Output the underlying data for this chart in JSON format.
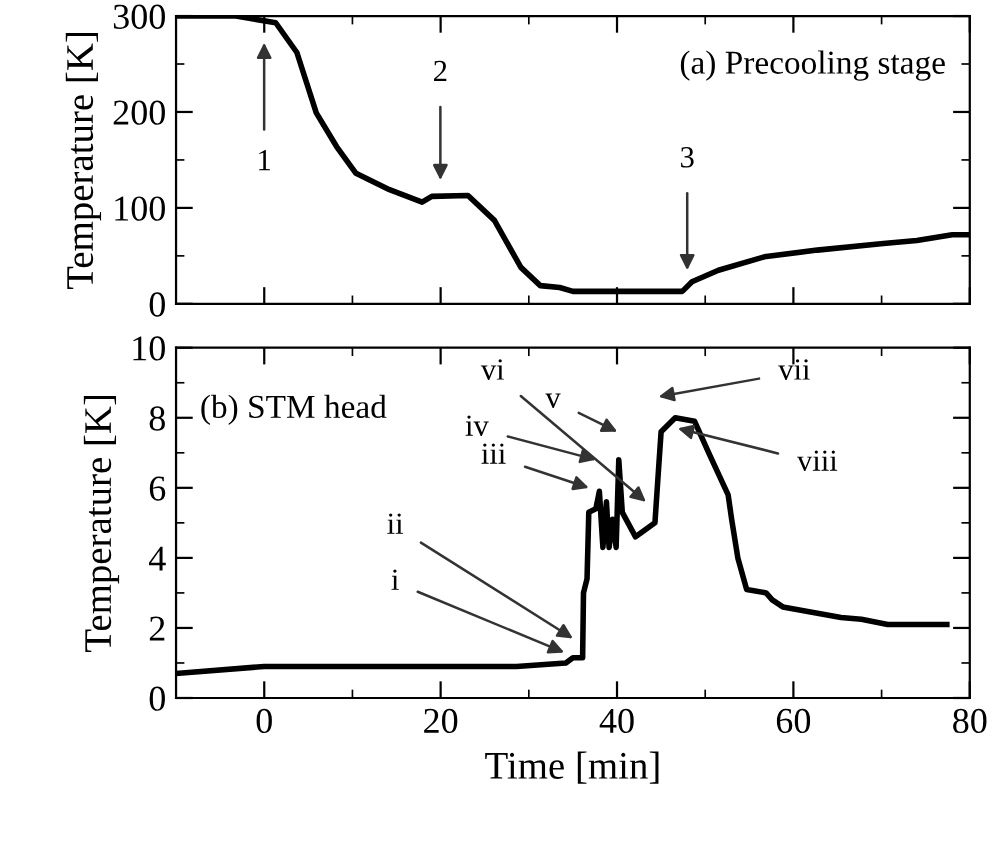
{
  "chart_data": [
    {
      "type": "line",
      "title": "(a) Precooling stage",
      "ylabel": "Temperature [K]",
      "xlim": [
        -10,
        80
      ],
      "ylim": [
        0,
        300
      ],
      "xticks": [
        0,
        20,
        40,
        60,
        80
      ],
      "yticks": [
        0,
        100,
        200,
        300
      ],
      "tick_labels": "y",
      "grid": false,
      "legend": false,
      "marker": "none",
      "line_style": "solid",
      "series": [
        {
          "color": "#000000",
          "x": [
            -10,
            -3.2,
            1.3,
            3.7,
            5.9,
            8.2,
            10.4,
            14.2,
            17.9,
            19.0,
            23.1,
            26.1,
            29.1,
            31.3,
            33.5,
            35.0,
            47.4,
            48.5,
            51.5,
            56.7,
            62.7,
            70.2,
            74,
            78,
            80
          ],
          "values": [
            300,
            300,
            293,
            262,
            199,
            164,
            136,
            119,
            106,
            112,
            113,
            87,
            38,
            19,
            17,
            13,
            13,
            23,
            35,
            49,
            56,
            63,
            66,
            72,
            72
          ]
        }
      ],
      "annotations": [
        "1",
        "2",
        "3"
      ]
    },
    {
      "type": "line",
      "title": "(b) STM head",
      "xlabel": "Time [min]",
      "ylabel": "Temperature [K]",
      "xlim": [
        -10,
        80
      ],
      "ylim": [
        0,
        10
      ],
      "xticks": [
        0,
        20,
        40,
        60,
        80
      ],
      "yticks": [
        0,
        2,
        4,
        6,
        8,
        10
      ],
      "grid": false,
      "legend": false,
      "marker": "none",
      "line_style": "solid",
      "series": [
        {
          "color": "#000000",
          "x": [
            -10,
            0,
            28.6,
            34.2,
            35.0,
            36.1,
            36.2,
            36.6,
            36.8,
            37.6,
            38.0,
            38.4,
            38.8,
            39.1,
            39.5,
            39.9,
            40.2,
            40.6,
            42.1,
            44.3,
            44.7,
            45.0,
            46.6,
            48.8,
            50.4,
            52.6,
            53.0,
            53.7,
            54.7,
            56.9,
            57.6,
            58.8,
            65.4,
            67.7,
            70.7,
            77.4
          ],
          "values": [
            0.7,
            0.9,
            0.9,
            1.0,
            1.15,
            1.15,
            3.0,
            3.4,
            5.3,
            5.4,
            5.9,
            4.3,
            5.6,
            4.3,
            5.1,
            4.3,
            6.8,
            5.3,
            4.6,
            5.0,
            6.5,
            7.6,
            8.0,
            7.9,
            7.0,
            5.8,
            5.1,
            4.0,
            3.1,
            3.0,
            2.8,
            2.6,
            2.3,
            2.25,
            2.1,
            2.1
          ]
        }
      ],
      "annotations": [
        "i",
        "ii",
        "iii",
        "iv",
        "v",
        "vi",
        "vii",
        {
          "text": "viii",
          "x": 46.9,
          "y": 7.7
        }
      ]
    }
  ]
}
